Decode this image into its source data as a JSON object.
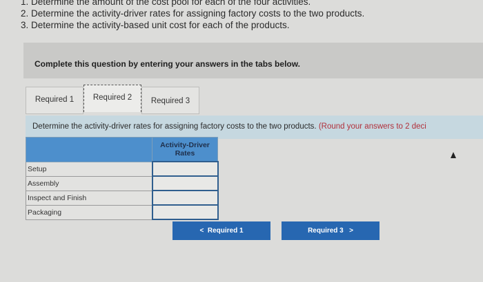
{
  "instructions": [
    "1. Determine the amount of the cost pool for each of the four activities.",
    "2. Determine the activity-driver rates for assigning factory costs to the two products.",
    "3. Determine the activity-based unit cost for each of the products."
  ],
  "panel_text": "Complete this question by entering your answers in the tabs below.",
  "tabs": [
    {
      "label": "Required 1"
    },
    {
      "label": "Required 2",
      "active": true
    },
    {
      "label": "Required 3"
    }
  ],
  "prompt": {
    "text": "Determine the activity-driver rates for assigning factory costs to the two products.",
    "note": "(Round your answers to 2 deci"
  },
  "table": {
    "header": "Activity-Driver Rates",
    "rows": [
      {
        "label": "Setup",
        "value": ""
      },
      {
        "label": "Assembly",
        "value": ""
      },
      {
        "label": "Inspect and Finish",
        "value": ""
      },
      {
        "label": "Packaging",
        "value": ""
      }
    ]
  },
  "nav": {
    "prev_label": "Required 1",
    "next_label": "Required 3",
    "prev_icon": "chevron-left-icon",
    "next_icon": "chevron-right-icon"
  },
  "colors": {
    "accent": "#2767b1",
    "header": "#4d8fcc",
    "prompt_bg": "#c6d8e0",
    "note": "#b1303b"
  }
}
